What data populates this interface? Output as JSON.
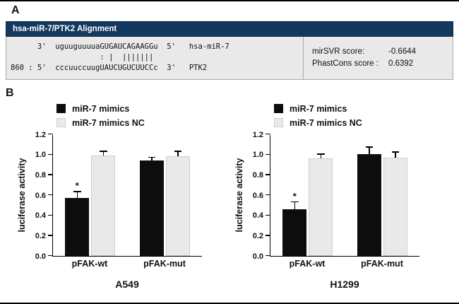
{
  "figure": {
    "panel_a_label": "A",
    "panel_b_label": "B"
  },
  "colors": {
    "header_bg": "#14395f",
    "bar_primary": "#0d0d0d",
    "bar_secondary": "#e9e9e9"
  },
  "alignment": {
    "header": "hsa-miR-7/PTK2 Alignment",
    "lines": [
      "      3'  uguuguuuuaGUGAUCAGAAGGu  5'   hsa-miR-7",
      "                    : |  |||||||",
      "860 : 5'  cccuuccuugUAUCUGUCUUCCc  3'   PTK2"
    ],
    "scores": [
      {
        "label": "mirSVR score:",
        "value": "-0.6644"
      },
      {
        "label": "PhastCons score :",
        "value": "0.6392"
      }
    ]
  },
  "chart_data": [
    {
      "type": "bar",
      "title": "A549",
      "ylabel": "luciferase activity",
      "ylim": [
        0,
        1.2
      ],
      "yticks": [
        0.0,
        0.2,
        0.4,
        0.6,
        0.8,
        1.0,
        1.2
      ],
      "categories": [
        "pFAK-wt",
        "pFAK-mut"
      ],
      "legend_position": "top-left",
      "grid": false,
      "series": [
        {
          "name": "miR-7 mimics",
          "color": "#0d0d0d",
          "values": [
            0.57,
            0.94
          ],
          "errors": [
            0.06,
            0.03
          ],
          "annotations": [
            "*",
            ""
          ]
        },
        {
          "name": "miR-7 mimics NC",
          "color": "#e9e9e9",
          "values": [
            0.99,
            0.98
          ],
          "errors": [
            0.04,
            0.05
          ],
          "annotations": [
            "",
            ""
          ]
        }
      ]
    },
    {
      "type": "bar",
      "title": "H1299",
      "ylabel": "luciferase activity",
      "ylim": [
        0,
        1.2
      ],
      "yticks": [
        0.0,
        0.2,
        0.4,
        0.6,
        0.8,
        1.0,
        1.2
      ],
      "categories": [
        "pFAK-wt",
        "pFAK-mut"
      ],
      "legend_position": "top-left",
      "grid": false,
      "series": [
        {
          "name": "miR-7 mimics",
          "color": "#0d0d0d",
          "values": [
            0.46,
            1.0
          ],
          "errors": [
            0.07,
            0.07
          ],
          "annotations": [
            "*",
            ""
          ]
        },
        {
          "name": "miR-7 mimics NC",
          "color": "#e9e9e9",
          "values": [
            0.96,
            0.97
          ],
          "errors": [
            0.04,
            0.05
          ],
          "annotations": [
            "",
            ""
          ]
        }
      ]
    }
  ]
}
